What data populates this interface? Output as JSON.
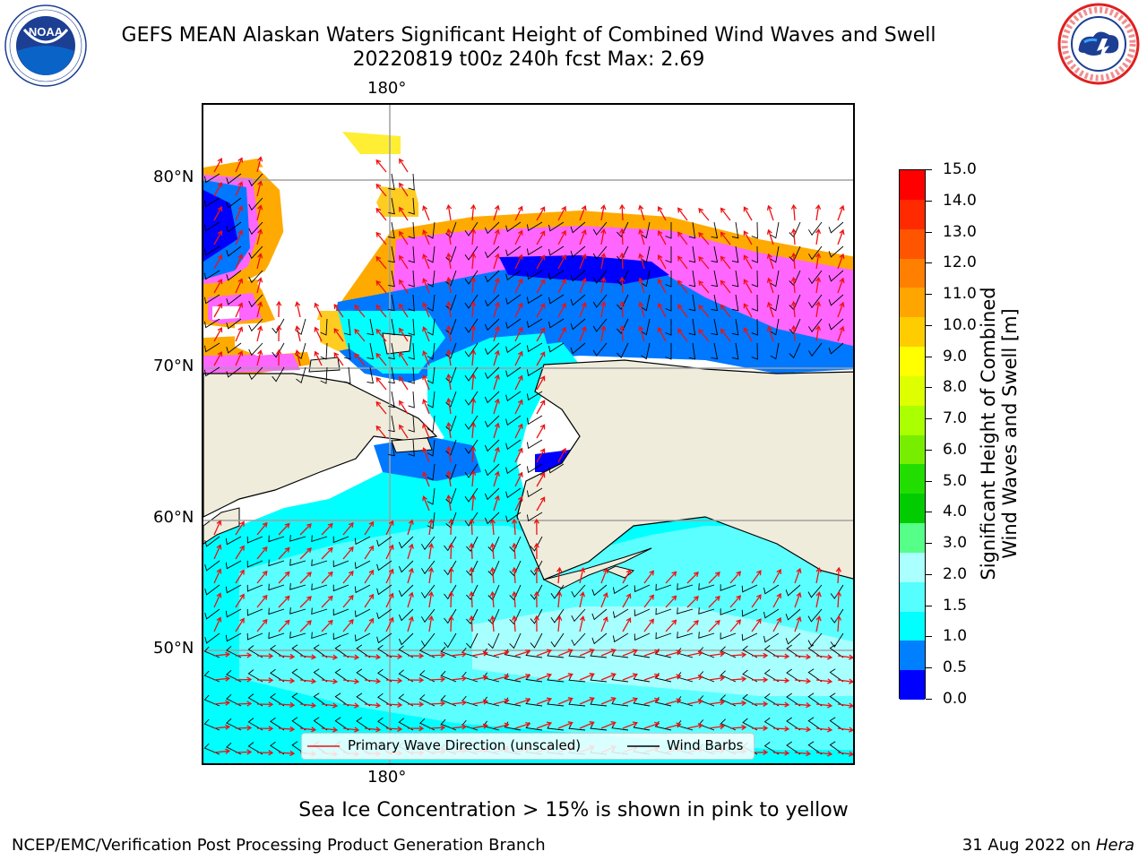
{
  "header": {
    "title_line1": "GEFS MEAN Alaskan Waters Significant Height of Combined Wind Waves and Swell",
    "title_line2": "20220819 t00z 240h fcst   Max: 2.69"
  },
  "logos": {
    "left": {
      "name": "noaa-logo",
      "text": "NOAA",
      "ring_text": "NATIONAL OCEANIC AND ATMOSPHERIC ADMINISTRATION · U.S. DEPARTMENT OF COMMERCE"
    },
    "right": {
      "name": "nws-logo",
      "ring_text": "NATIONAL WEATHER SERVICE"
    }
  },
  "map": {
    "lon_label_top": "180°",
    "lon_label_bottom": "180°",
    "lat_labels": [
      "80°N",
      "70°N",
      "60°N",
      "50°N"
    ],
    "colors": {
      "land": "#efecdc",
      "ocean_low": "#00ffff",
      "ocean_mid": "#5cffff",
      "ocean_bright": "#a8ffff",
      "deep_blue": "#0078ff",
      "ice_pink": "#ff66ff",
      "ice_orange": "#ffaa00",
      "ice_yellow": "#ffff44",
      "arrow": "#ee1111",
      "barb": "#000000",
      "grid": "#a0a0a0"
    }
  },
  "legend": {
    "wave_label": "Primary Wave Direction (unscaled)",
    "barb_label": "Wind Barbs",
    "wave_color": "#ee1111",
    "barb_color": "#000000"
  },
  "colorbar": {
    "label_line1": "Significant Height of Combined",
    "label_line2": "Wind Waves and Swell [m]",
    "ticks": [
      "15.0",
      "14.0",
      "13.0",
      "12.0",
      "11.0",
      "10.0",
      "9.0",
      "8.0",
      "7.0",
      "6.0",
      "5.0",
      "4.0",
      "3.0",
      "2.0",
      "1.5",
      "1.0",
      "0.5",
      "0.0"
    ],
    "colors_top_to_bottom": [
      "#ff0000",
      "#ff2a00",
      "#ff5500",
      "#ff8000",
      "#ffa500",
      "#ffcc00",
      "#ffff00",
      "#ddff00",
      "#aaff00",
      "#77ee00",
      "#22dd00",
      "#00cc00",
      "#55ff88",
      "#aaffff",
      "#55ffff",
      "#00ffff",
      "#0080ff",
      "#0000ff"
    ]
  },
  "footer": {
    "sea_ice_note": "Sea Ice Concentration > 15% is shown in pink to yellow",
    "branch": "NCEP/EMC/Verification Post Processing Product Generation Branch",
    "date": "31 Aug 2022 on ",
    "machine": "Hera"
  }
}
